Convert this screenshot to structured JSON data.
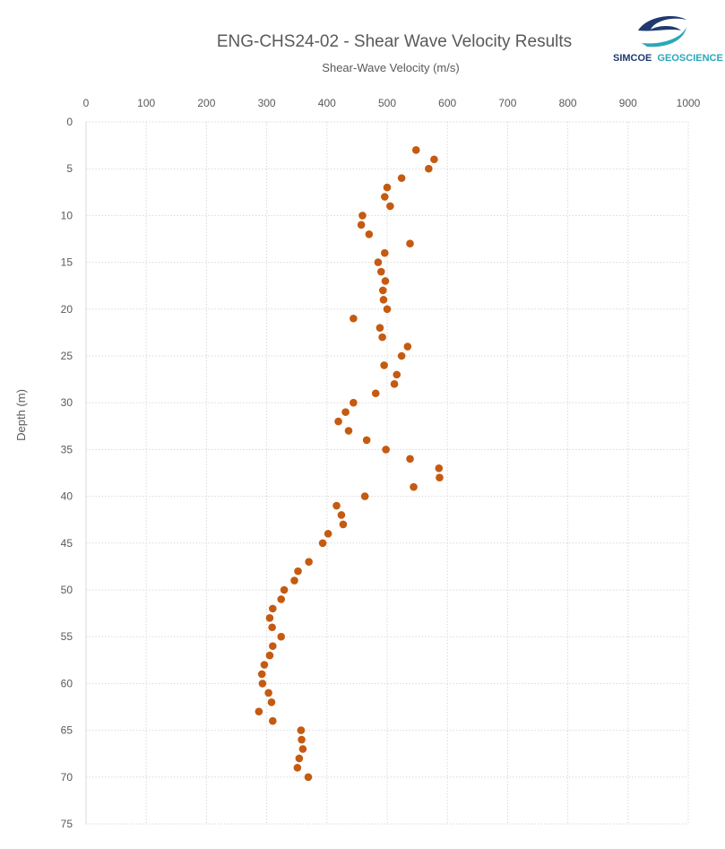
{
  "chart_data": {
    "type": "scatter",
    "title": "ENG-CHS24-02 - Shear Wave Velocity Results",
    "xlabel": "Shear-Wave Velocity (m/s)",
    "ylabel": "Depth (m)",
    "xlim": [
      0,
      1000
    ],
    "ylim": [
      0,
      75
    ],
    "y_inverted": true,
    "x_axis_position": "top",
    "xticks": [
      "0",
      "100",
      "200",
      "300",
      "400",
      "500",
      "600",
      "700",
      "800",
      "900",
      "1000"
    ],
    "yticks": [
      "0",
      "5",
      "10",
      "15",
      "20",
      "25",
      "30",
      "35",
      "40",
      "45",
      "50",
      "55",
      "60",
      "65",
      "70",
      "75"
    ],
    "grid": "dotted",
    "legend": "none",
    "marker_color": "#C55A11",
    "points": [
      {
        "x": 548,
        "y": 3
      },
      {
        "x": 578,
        "y": 4
      },
      {
        "x": 569,
        "y": 5
      },
      {
        "x": 524,
        "y": 6
      },
      {
        "x": 500,
        "y": 7
      },
      {
        "x": 496,
        "y": 8
      },
      {
        "x": 505,
        "y": 9
      },
      {
        "x": 459,
        "y": 10
      },
      {
        "x": 457,
        "y": 11
      },
      {
        "x": 470,
        "y": 12
      },
      {
        "x": 538,
        "y": 13
      },
      {
        "x": 496,
        "y": 14
      },
      {
        "x": 485,
        "y": 15
      },
      {
        "x": 490,
        "y": 16
      },
      {
        "x": 497,
        "y": 17
      },
      {
        "x": 493,
        "y": 18
      },
      {
        "x": 494,
        "y": 19
      },
      {
        "x": 500,
        "y": 20
      },
      {
        "x": 444,
        "y": 21
      },
      {
        "x": 488,
        "y": 22
      },
      {
        "x": 492,
        "y": 23
      },
      {
        "x": 534,
        "y": 24
      },
      {
        "x": 524,
        "y": 25
      },
      {
        "x": 495,
        "y": 26
      },
      {
        "x": 516,
        "y": 27
      },
      {
        "x": 512,
        "y": 28
      },
      {
        "x": 481,
        "y": 29
      },
      {
        "x": 444,
        "y": 30
      },
      {
        "x": 431,
        "y": 31
      },
      {
        "x": 419,
        "y": 32
      },
      {
        "x": 436,
        "y": 33
      },
      {
        "x": 466,
        "y": 34
      },
      {
        "x": 498,
        "y": 35
      },
      {
        "x": 538,
        "y": 36
      },
      {
        "x": 586,
        "y": 37
      },
      {
        "x": 587,
        "y": 38
      },
      {
        "x": 544,
        "y": 39
      },
      {
        "x": 463,
        "y": 40
      },
      {
        "x": 416,
        "y": 41
      },
      {
        "x": 424,
        "y": 42
      },
      {
        "x": 427,
        "y": 43
      },
      {
        "x": 402,
        "y": 44
      },
      {
        "x": 393,
        "y": 45
      },
      {
        "x": 370,
        "y": 47
      },
      {
        "x": 352,
        "y": 48
      },
      {
        "x": 346,
        "y": 49
      },
      {
        "x": 329,
        "y": 50
      },
      {
        "x": 324,
        "y": 51
      },
      {
        "x": 310,
        "y": 52
      },
      {
        "x": 305,
        "y": 53
      },
      {
        "x": 309,
        "y": 54
      },
      {
        "x": 324,
        "y": 55
      },
      {
        "x": 310,
        "y": 56
      },
      {
        "x": 305,
        "y": 57
      },
      {
        "x": 296,
        "y": 58
      },
      {
        "x": 292,
        "y": 59
      },
      {
        "x": 293,
        "y": 60
      },
      {
        "x": 303,
        "y": 61
      },
      {
        "x": 308,
        "y": 62
      },
      {
        "x": 287,
        "y": 63
      },
      {
        "x": 310,
        "y": 64
      },
      {
        "x": 357,
        "y": 65
      },
      {
        "x": 358,
        "y": 66
      },
      {
        "x": 360,
        "y": 67
      },
      {
        "x": 354,
        "y": 68
      },
      {
        "x": 351,
        "y": 69
      },
      {
        "x": 369,
        "y": 70
      }
    ]
  },
  "logo": {
    "text_part1": "SIMCOE",
    "text_part2": "GEOSCIENCE",
    "color_dark": "#1F3A6E",
    "color_teal": "#2AA7B8"
  }
}
